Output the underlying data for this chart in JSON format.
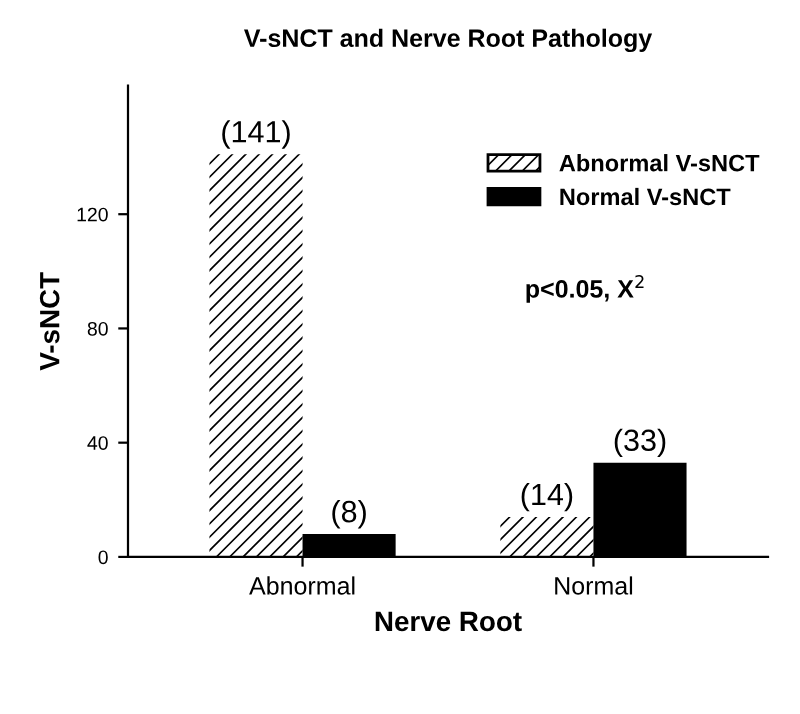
{
  "chart_data": {
    "type": "bar",
    "title": "V-sNCT and Nerve Root Pathology",
    "xlabel": "Nerve Root",
    "ylabel": "V-sNCT",
    "categories": [
      "Abnormal",
      "Normal"
    ],
    "series": [
      {
        "name": "Abnormal V-sNCT",
        "color": "#ffffff",
        "values": [
          141,
          14
        ],
        "value_labels": [
          "(141)",
          "(14)"
        ]
      },
      {
        "name": "Normal V-sNCT",
        "color": "#000000",
        "values": [
          8,
          33
        ],
        "value_labels": [
          "(8)",
          "(33)"
        ]
      }
    ],
    "ylim": [
      0,
      165
    ],
    "yticks": [
      0,
      40,
      80,
      120
    ],
    "grid": false,
    "legend": "top right",
    "annotations": [
      {
        "text": "p<0.05, X$^{2}$"
      }
    ]
  }
}
